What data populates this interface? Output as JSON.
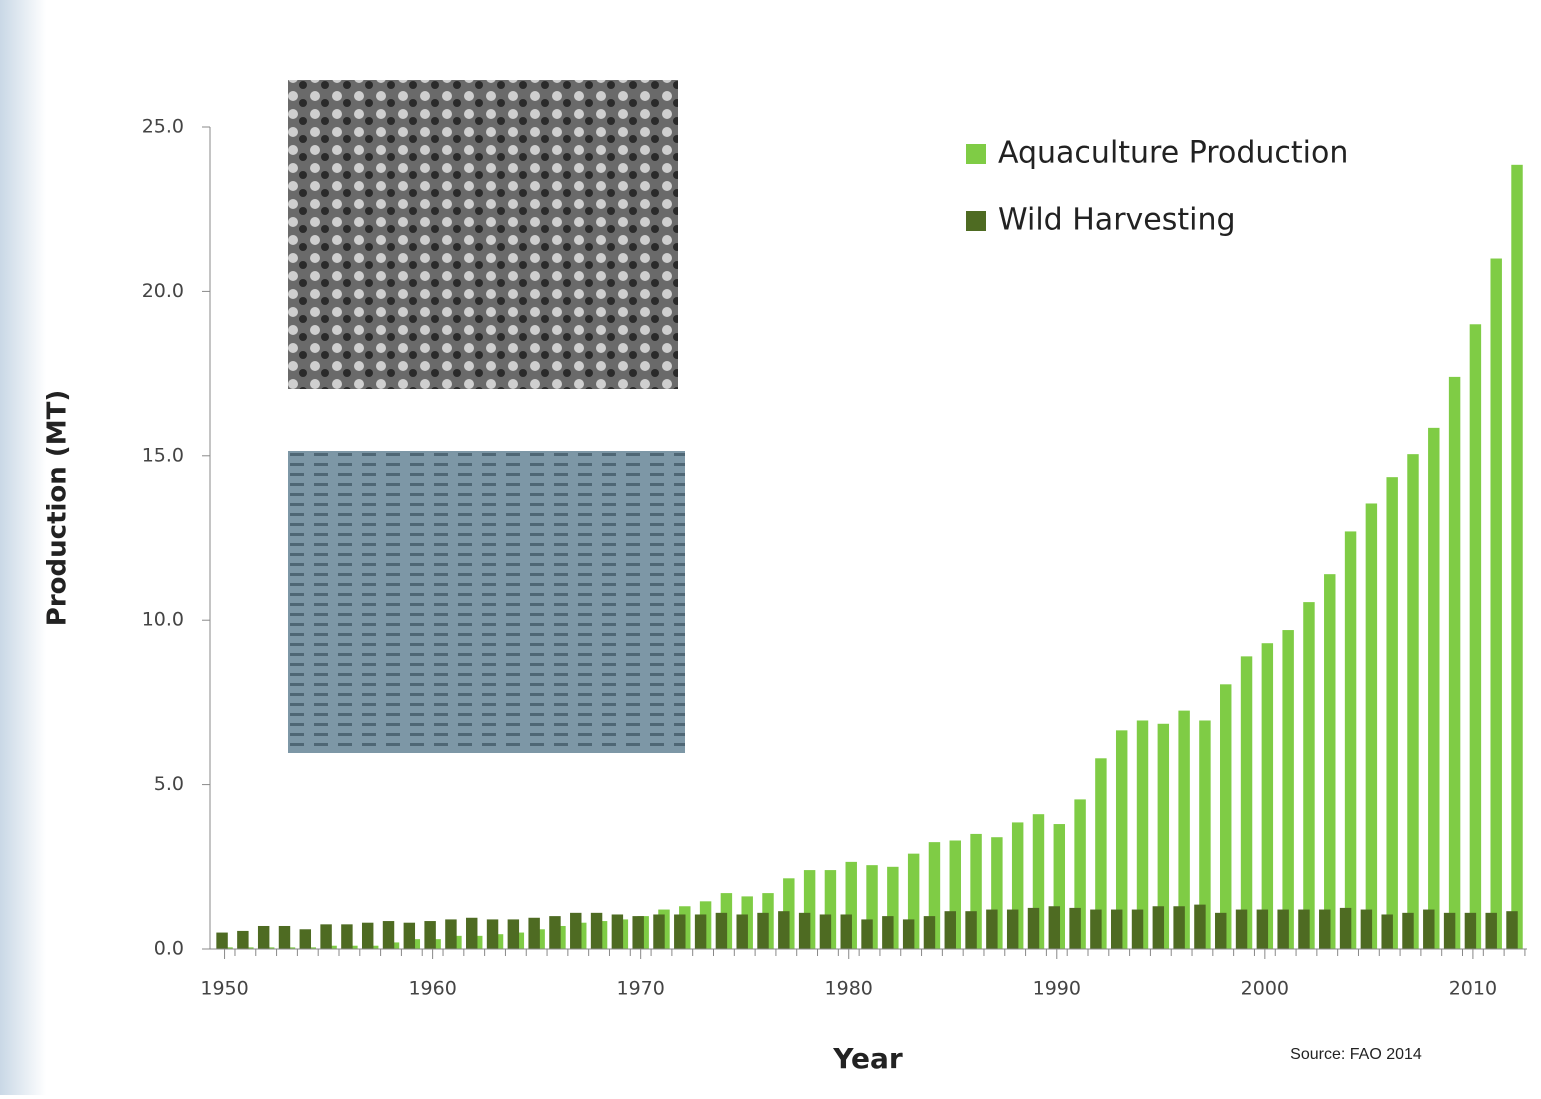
{
  "chart_data": {
    "type": "bar",
    "x_label": "Year",
    "y_label": "Production (MT)",
    "source": "Source: FAO 2014",
    "x": [
      1950,
      1951,
      1952,
      1953,
      1954,
      1955,
      1956,
      1957,
      1958,
      1959,
      1960,
      1961,
      1962,
      1963,
      1964,
      1965,
      1966,
      1967,
      1968,
      1969,
      1970,
      1971,
      1972,
      1973,
      1974,
      1975,
      1976,
      1977,
      1978,
      1979,
      1980,
      1981,
      1982,
      1983,
      1984,
      1985,
      1986,
      1987,
      1988,
      1989,
      1990,
      1991,
      1992,
      1993,
      1994,
      1995,
      1996,
      1997,
      1998,
      1999,
      2000,
      2001,
      2002,
      2003,
      2004,
      2005,
      2006,
      2007,
      2008,
      2009,
      2010,
      2011,
      2012
    ],
    "series": [
      {
        "name": "Aquaculture Production",
        "color": "#7fcc45",
        "values": [
          0.05,
          0.05,
          0.05,
          0.05,
          0.05,
          0.1,
          0.1,
          0.1,
          0.2,
          0.3,
          0.3,
          0.4,
          0.4,
          0.45,
          0.5,
          0.6,
          0.7,
          0.8,
          0.85,
          0.9,
          1.0,
          1.2,
          1.3,
          1.45,
          1.7,
          1.6,
          1.7,
          2.15,
          2.4,
          2.4,
          2.65,
          2.55,
          2.5,
          2.9,
          3.25,
          3.3,
          3.5,
          3.4,
          3.85,
          4.1,
          3.8,
          4.55,
          5.8,
          6.65,
          6.95,
          6.85,
          7.25,
          6.95,
          8.05,
          8.9,
          9.3,
          9.7,
          10.55,
          11.4,
          12.7,
          13.55,
          14.35,
          15.05,
          15.85,
          17.4,
          19.0,
          21.0,
          23.85
        ]
      },
      {
        "name": "Wild Harvesting",
        "color": "#4e6b22",
        "values": [
          0.5,
          0.55,
          0.7,
          0.7,
          0.6,
          0.75,
          0.75,
          0.8,
          0.85,
          0.8,
          0.85,
          0.9,
          0.95,
          0.9,
          0.9,
          0.95,
          1.0,
          1.1,
          1.1,
          1.05,
          1.0,
          1.05,
          1.05,
          1.05,
          1.1,
          1.05,
          1.1,
          1.15,
          1.1,
          1.05,
          1.05,
          0.9,
          1.0,
          0.9,
          1.0,
          1.15,
          1.15,
          1.2,
          1.2,
          1.25,
          1.3,
          1.25,
          1.2,
          1.2,
          1.2,
          1.3,
          1.3,
          1.35,
          1.1,
          1.2,
          1.2,
          1.2,
          1.2,
          1.2,
          1.25,
          1.2,
          1.05,
          1.1,
          1.2,
          1.1,
          1.1,
          1.1,
          1.15
        ]
      }
    ],
    "xlim": [
      1949.3,
      2012.6
    ],
    "xticks": [
      1950,
      1960,
      1970,
      1980,
      1990,
      2000,
      2010
    ],
    "ylim": [
      0,
      25
    ],
    "yticks": [
      {
        "value": 0,
        "label": "0.0"
      },
      {
        "value": 5,
        "label": "5.0"
      },
      {
        "value": 10,
        "label": "10.0"
      },
      {
        "value": 15,
        "label": "15.0"
      },
      {
        "value": 20,
        "label": "20.0"
      },
      {
        "value": 25,
        "label": "25.0"
      }
    ],
    "legend": "top-right"
  }
}
